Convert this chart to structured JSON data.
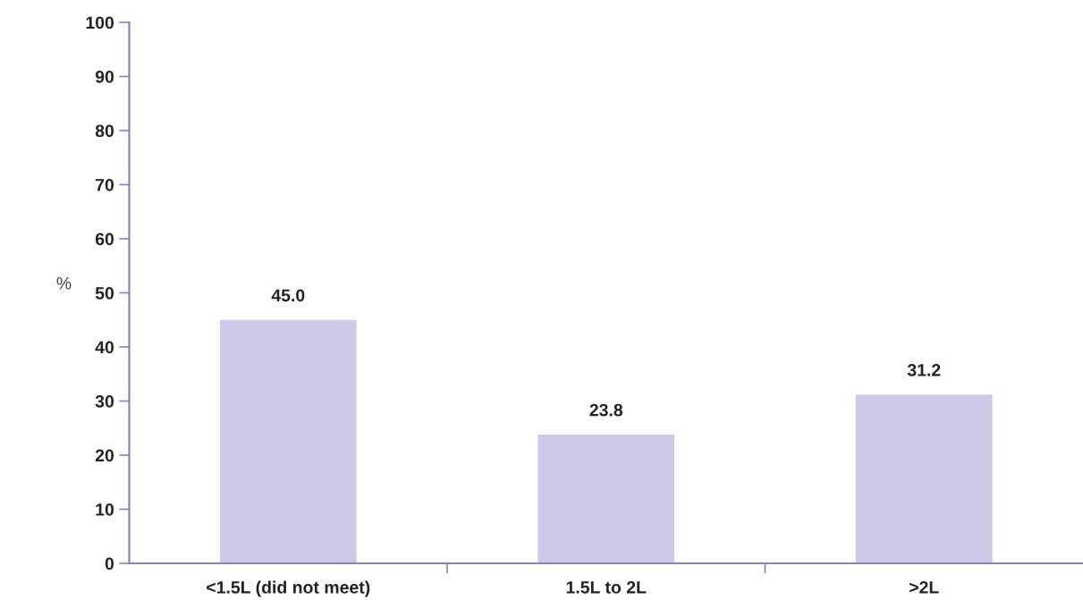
{
  "chart_data": {
    "type": "bar",
    "ylabel": "%",
    "categories": [
      "<1.5L (did not meet)",
      "1.5L to 2L",
      ">2L"
    ],
    "values": [
      45.0,
      23.8,
      31.2
    ],
    "value_labels": [
      "45.0",
      "23.8",
      "31.2"
    ],
    "color": "#cccae6",
    "ylim": [
      0,
      100
    ],
    "yticks": [
      0,
      10,
      20,
      30,
      40,
      50,
      60,
      70,
      80,
      90,
      100
    ]
  }
}
